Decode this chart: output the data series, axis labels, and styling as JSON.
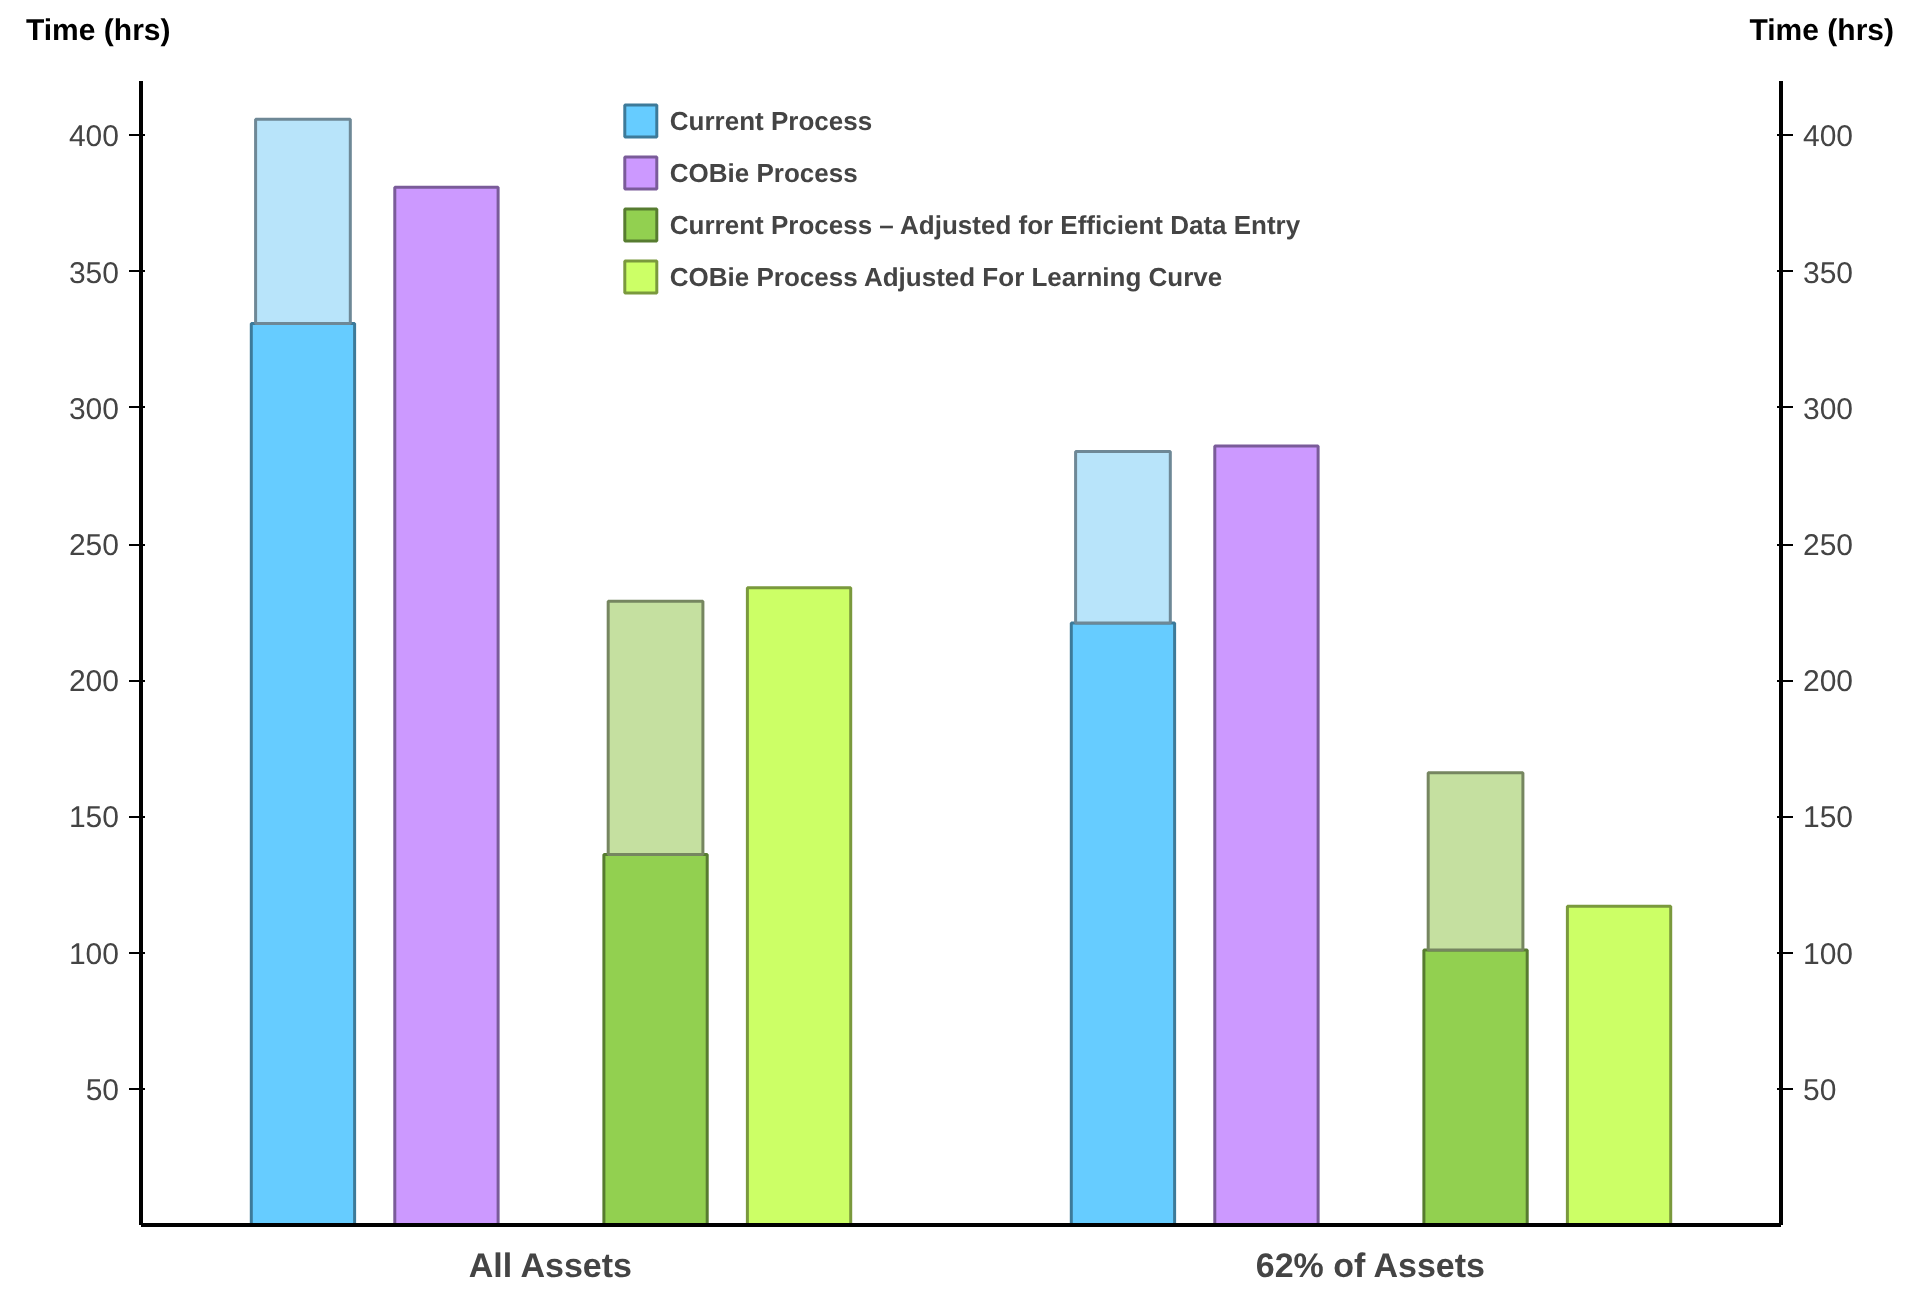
{
  "chart_data": {
    "type": "bar",
    "categories": [
      "All Assets",
      "62% of Assets"
    ],
    "ylabel": "Time (hrs)",
    "y2label": "Time (hrs)",
    "series": [
      {
        "name": "Current Process",
        "color": "#66ccff",
        "values": [
          331,
          221
        ]
      },
      {
        "color": "#b8e4fa",
        "values": [
          75,
          63
        ],
        "base": [
          331,
          221
        ]
      },
      {
        "name": "COBie Process",
        "color": "#cc99ff",
        "values": [
          381,
          286
        ]
      },
      {
        "name": "Current Process – Adjusted for Efficient Data Entry",
        "color": "#92d050",
        "values": [
          136,
          101
        ]
      },
      {
        "color": "#c5e0a0",
        "values": [
          93,
          65
        ],
        "base": [
          136,
          101
        ]
      },
      {
        "name": "COBie Process Adjusted For Learning Curve",
        "color": "#ccff66",
        "values": [
          234,
          117
        ]
      }
    ],
    "ylim": [
      0,
      420
    ],
    "yticks": [
      50,
      100,
      150,
      200,
      250,
      300,
      350,
      400
    ],
    "y2lim": [
      0,
      420
    ],
    "y2ticks": [
      50,
      100,
      150,
      200,
      250,
      300,
      350,
      400
    ],
    "grid": false,
    "legend": "top"
  }
}
